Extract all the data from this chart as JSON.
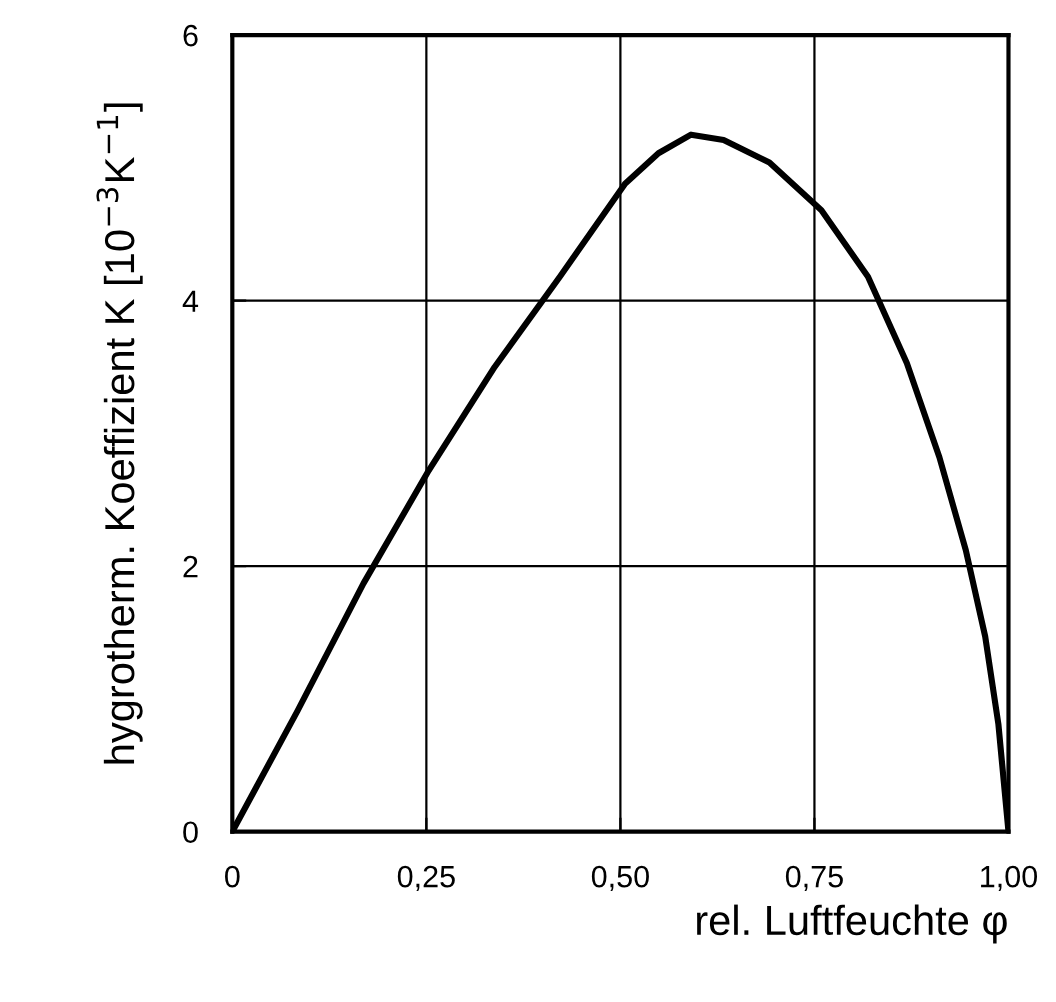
{
  "chart_data": {
    "type": "line",
    "xlabel": "rel. Luftfeuchte φ",
    "ylabel": "hygrotherm. Koeffizient K [10$^{−3}$K$^{−1}$]",
    "x": [
      0,
      0.084,
      0.169,
      0.253,
      0.338,
      0.422,
      0.506,
      0.549,
      0.591,
      0.633,
      0.692,
      0.759,
      0.819,
      0.869,
      0.911,
      0.945,
      0.97,
      0.987,
      1.0
    ],
    "series": [
      {
        "color": "#000000",
        "values": [
          0,
          0.91,
          1.87,
          2.72,
          3.5,
          4.18,
          4.88,
          5.11,
          5.25,
          5.21,
          5.04,
          4.68,
          4.18,
          3.53,
          2.82,
          2.12,
          1.47,
          0.81,
          0
        ]
      }
    ],
    "xlim": [
      0,
      1
    ],
    "ylim": [
      0,
      6
    ],
    "xticks": [
      0,
      {
        "value": 0.25,
        "label": "0,25"
      },
      {
        "value": 0.5,
        "label": "0,50"
      },
      {
        "value": 0.75,
        "label": "0,75"
      },
      {
        "value": 1,
        "label": "1,00"
      }
    ],
    "yticks": [
      0,
      2,
      4,
      6
    ],
    "grid": true,
    "marker": "none",
    "line_style": "solid"
  }
}
